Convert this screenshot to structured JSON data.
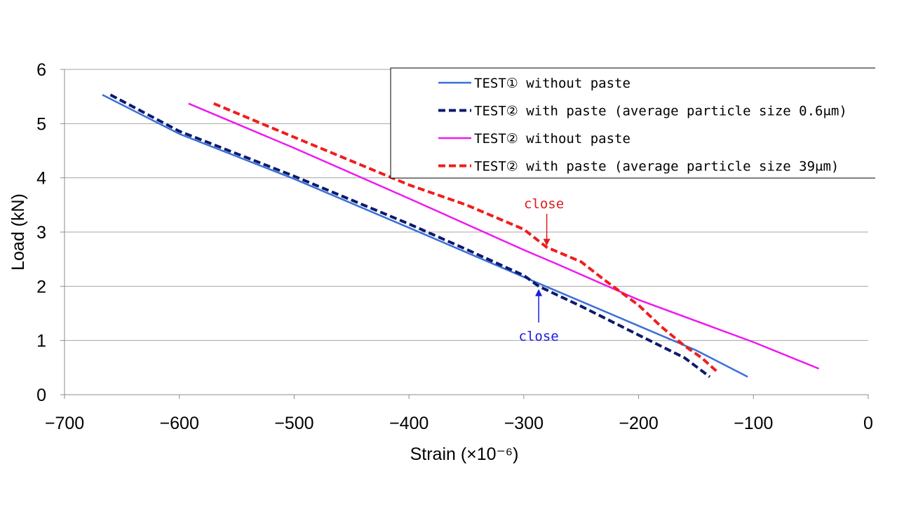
{
  "chart_data": {
    "type": "line",
    "xlabel": "Strain (×10⁻⁶)",
    "ylabel": "Load (kN)",
    "xlim": [
      -700,
      0
    ],
    "ylim": [
      0,
      6
    ],
    "xticks": [
      "−700",
      "−600",
      "−500",
      "−400",
      "−300",
      "−200",
      "−100",
      "0"
    ],
    "yticks": [
      "0",
      "1",
      "2",
      "3",
      "4",
      "5",
      "6"
    ],
    "grid": "horizontal",
    "legend_position": "top-right",
    "series": [
      {
        "name": "TEST① without paste",
        "color": "#3a6fd8",
        "style": "solid",
        "x": [
          -667,
          -600,
          -500,
          -400,
          -300,
          -200,
          -150,
          -105
        ],
        "y": [
          5.53,
          4.81,
          3.98,
          3.08,
          2.17,
          1.27,
          0.82,
          0.33
        ]
      },
      {
        "name": "TEST② with paste (average particle size 0.6μm)",
        "color": "#0b1a6e",
        "style": "dashed",
        "x": [
          -660,
          -600,
          -500,
          -400,
          -350,
          -300,
          -287,
          -250,
          -200,
          -160,
          -138
        ],
        "y": [
          5.53,
          4.86,
          4.03,
          3.15,
          2.68,
          2.2,
          2.0,
          1.63,
          1.1,
          0.68,
          0.33
        ]
      },
      {
        "name": "TEST② without paste",
        "color": "#ee1aee",
        "style": "solid",
        "x": [
          -592,
          -500,
          -400,
          -300,
          -270,
          -200,
          -100,
          -43
        ],
        "y": [
          5.37,
          4.55,
          3.62,
          2.67,
          2.4,
          1.75,
          0.97,
          0.48
        ]
      },
      {
        "name": "TEST② with paste (average particle size 39μm)",
        "color": "#f01d1d",
        "style": "dashed",
        "x": [
          -570,
          -500,
          -400,
          -350,
          -300,
          -280,
          -250,
          -230,
          -200,
          -180,
          -160,
          -145,
          -132
        ],
        "y": [
          5.37,
          4.75,
          3.87,
          3.5,
          3.05,
          2.72,
          2.45,
          2.12,
          1.65,
          1.25,
          0.9,
          0.68,
          0.43
        ]
      }
    ],
    "annotations": [
      {
        "text": "close",
        "color": "#e01a1a",
        "x": -280,
        "y": 2.72
      },
      {
        "text": "close",
        "color": "#1a1ae0",
        "x": -287,
        "y": 2.0
      }
    ]
  }
}
